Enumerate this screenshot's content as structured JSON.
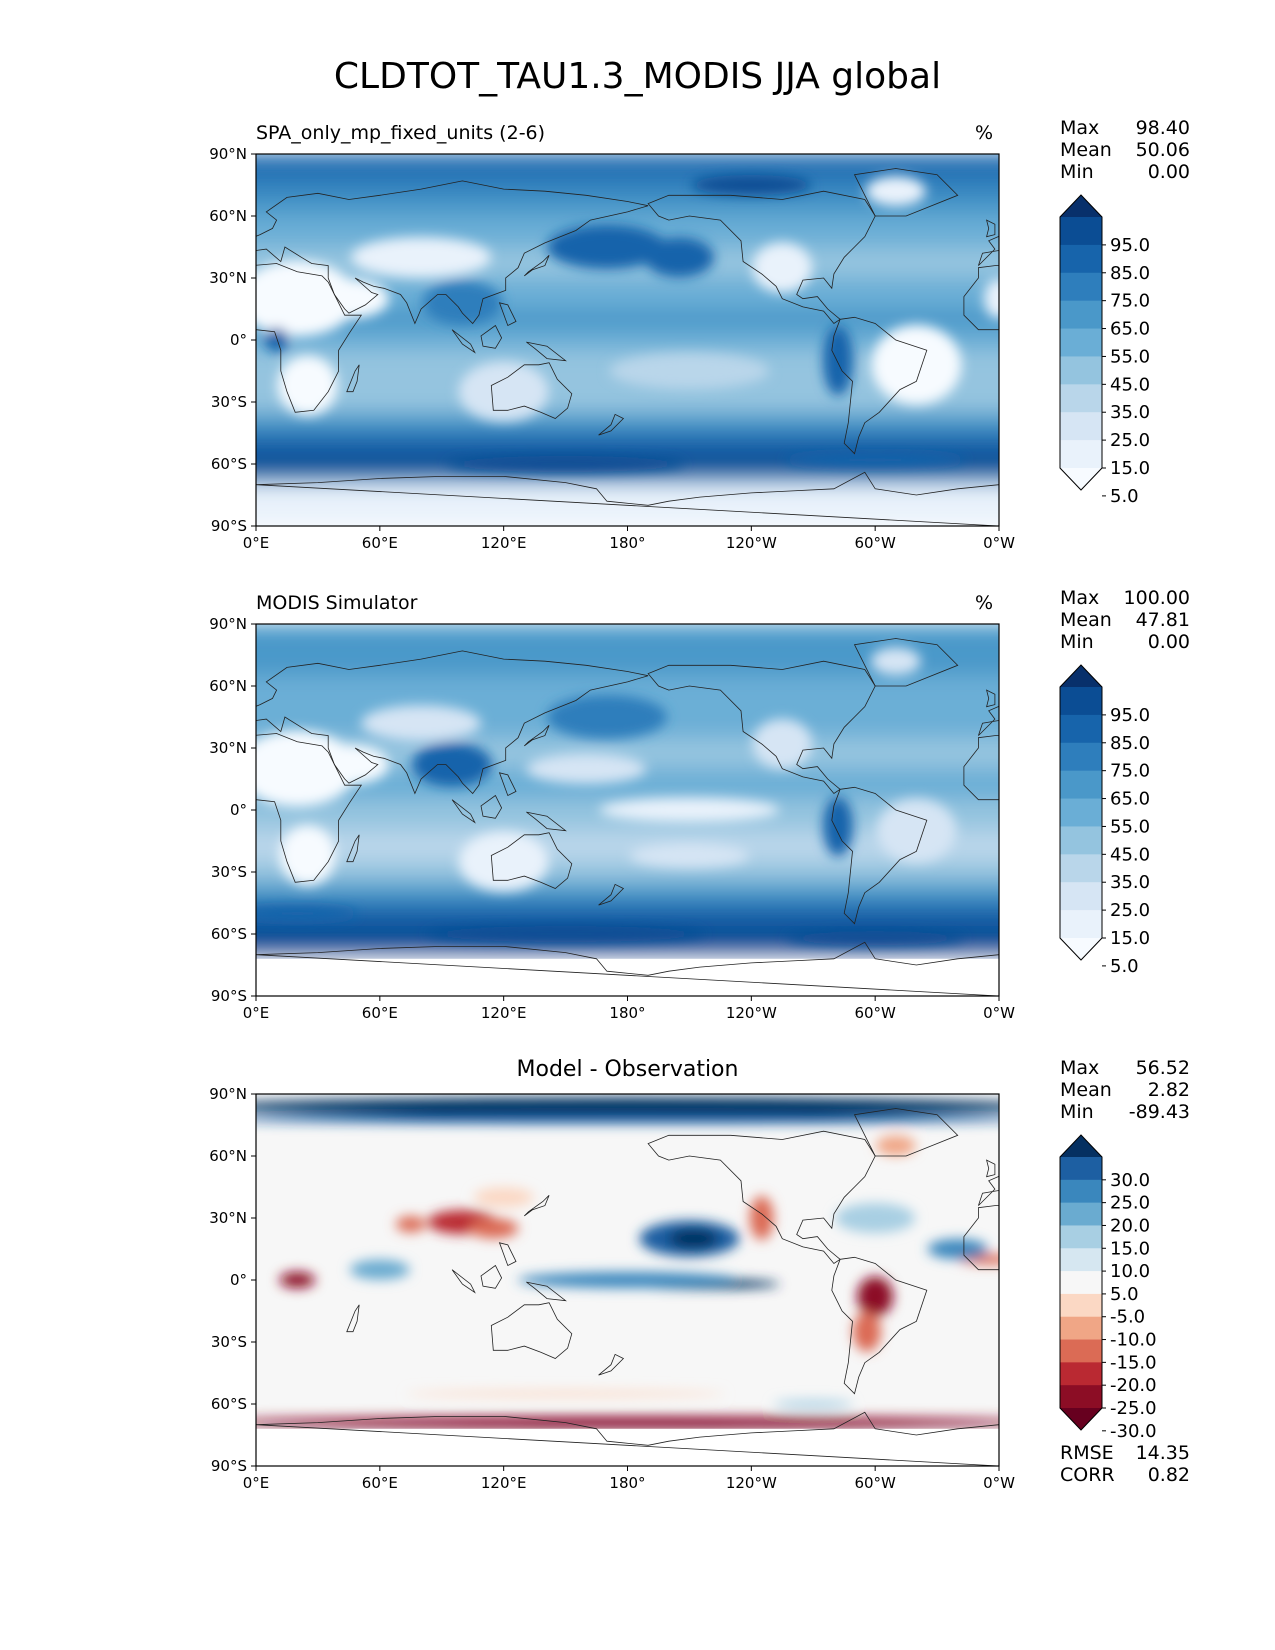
{
  "title": "CLDTOT_TAU1.3_MODIS JJA global",
  "lon_ticks": [
    "0°E",
    "60°E",
    "120°E",
    "180°",
    "120°W",
    "60°W",
    "0°W"
  ],
  "lat_ticks": [
    "90°N",
    "60°N",
    "30°N",
    "0°",
    "30°S",
    "60°S",
    "90°S"
  ],
  "panels": [
    {
      "id": "test",
      "title": "SPA_only_mp_fixed_units (2-6)",
      "units": "%",
      "stats": {
        "max_label": "Max",
        "max": "98.40",
        "mean_label": "Mean",
        "mean": "50.06",
        "min_label": "Min",
        "min": "0.00"
      },
      "colorbar": {
        "labels": [
          "95.0",
          "85.0",
          "75.0",
          "65.0",
          "55.0",
          "45.0",
          "35.0",
          "25.0",
          "15.0",
          "5.0"
        ],
        "colors": [
          "#08306b",
          "#0b4d94",
          "#1764ab",
          "#2e7ebc",
          "#4a98c9",
          "#6aaed6",
          "#94c4df",
          "#b9d6ea",
          "#d6e5f4",
          "#e9f2fb",
          "#f7fbff"
        ]
      }
    },
    {
      "id": "ref",
      "title": "MODIS Simulator",
      "units": "%",
      "stats": {
        "max_label": "Max",
        "max": "100.00",
        "mean_label": "Mean",
        "mean": "47.81",
        "min_label": "Min",
        "min": "0.00"
      },
      "colorbar": {
        "labels": [
          "95.0",
          "85.0",
          "75.0",
          "65.0",
          "55.0",
          "45.0",
          "35.0",
          "25.0",
          "15.0",
          "5.0"
        ],
        "colors": [
          "#08306b",
          "#0b4d94",
          "#1764ab",
          "#2e7ebc",
          "#4a98c9",
          "#6aaed6",
          "#94c4df",
          "#b9d6ea",
          "#d6e5f4",
          "#e9f2fb",
          "#f7fbff"
        ]
      }
    },
    {
      "id": "diff",
      "title": "Model - Observation",
      "units": "",
      "stats": {
        "max_label": "Max",
        "max": "56.52",
        "mean_label": "Mean",
        "mean": "2.82",
        "min_label": "Min",
        "min": "-89.43"
      },
      "rmse_label": "RMSE",
      "rmse": "14.35",
      "corr_label": "CORR",
      "corr": "0.82",
      "colorbar": {
        "labels": [
          "30.0",
          "25.0",
          "20.0",
          "15.0",
          "10.0",
          "5.0",
          "-5.0",
          "-10.0",
          "-15.0",
          "-20.0",
          "-25.0",
          "-30.0"
        ],
        "colors": [
          "#053061",
          "#1d5fa2",
          "#3a87bd",
          "#6aabd0",
          "#a8cfe3",
          "#d6e7f1",
          "#f7f7f7",
          "#fbd8c4",
          "#f0a686",
          "#db6b55",
          "#ba2932",
          "#8c0d25",
          "#67001f"
        ]
      }
    }
  ]
}
